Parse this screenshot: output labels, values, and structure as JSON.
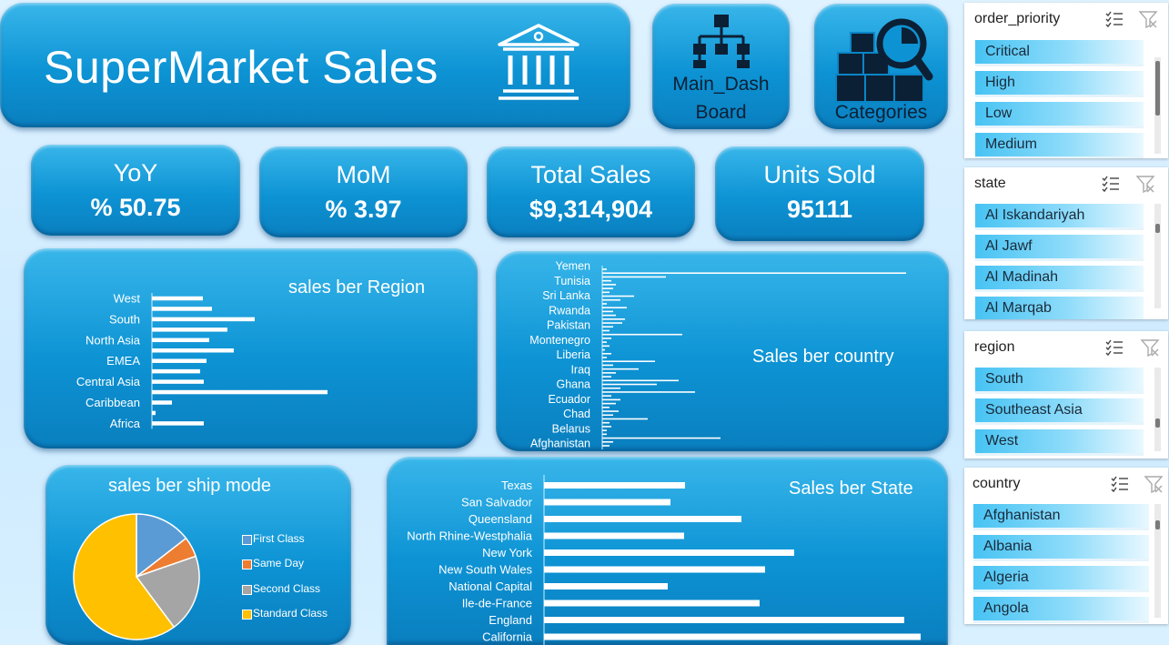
{
  "header": {
    "title": "SuperMarket Sales",
    "icon": "bank-building-icon"
  },
  "nav": {
    "main": {
      "label_line1": "Main_Dash",
      "label_line2": "Board",
      "icon": "org-chart-icon"
    },
    "categories": {
      "label": "Categories",
      "icon": "boxes-magnifier-icon"
    }
  },
  "kpis": {
    "yoy": {
      "label": "YoY",
      "value": "% 50.75"
    },
    "mom": {
      "label": "MoM",
      "value": "% 3.97"
    },
    "total_sales": {
      "label": "Total Sales",
      "value": "$9,314,904"
    },
    "units_sold": {
      "label": "Units Sold",
      "value": "95111"
    }
  },
  "colors": {
    "panel": "#0d93d4",
    "panel_light": "#38b6ea",
    "bar": "#ffffff",
    "slicer_item": "#47c3f3",
    "page_bg": "#dff2ff"
  },
  "charts": {
    "region": {
      "title": "sales ber Region"
    },
    "country": {
      "title": "Sales ber country"
    },
    "ship_mode": {
      "title": "sales ber ship mode"
    },
    "state": {
      "title": "Sales ber State"
    }
  },
  "chart_data": [
    {
      "type": "bar",
      "orientation": "horizontal",
      "title": "sales ber Region",
      "categories": [
        "West",
        "",
        "South",
        "",
        "North Asia",
        "",
        "EMEA",
        "",
        "Central Asia",
        "",
        "Caribbean",
        "",
        "Africa"
      ],
      "values": [
        56,
        66,
        113,
        83,
        63,
        90,
        60,
        53,
        57,
        193,
        22,
        4,
        57
      ]
    },
    {
      "type": "bar",
      "orientation": "horizontal",
      "title": "Sales ber country",
      "tick_labels": [
        "Yemen",
        "Tunisia",
        "Sri Lanka",
        "Rwanda",
        "Pakistan",
        "Montenegro",
        "Liberia",
        "Iraq",
        "Ghana",
        "Ecuador",
        "Chad",
        "Belarus",
        "Afghanistan"
      ],
      "values": [
        5,
        334,
        70,
        10,
        15,
        12,
        8,
        35,
        20,
        5,
        27,
        12,
        15,
        25,
        22,
        12,
        8,
        88,
        10,
        5,
        8,
        3,
        10,
        5,
        58,
        12,
        40,
        15,
        10,
        84,
        60,
        20,
        102,
        10,
        20,
        15,
        8,
        18,
        12,
        50,
        8,
        10,
        5,
        5,
        130,
        12,
        8
      ]
    },
    {
      "type": "pie",
      "title": "sales ber ship mode",
      "series": [
        {
          "name": "First Class",
          "value": 14.5,
          "color": "#5b9bd5"
        },
        {
          "name": "Same Day",
          "value": 5.2,
          "color": "#ed7d31"
        },
        {
          "name": "Second Class",
          "value": 20.1,
          "color": "#a5a5a5"
        },
        {
          "name": "Standard Class",
          "value": 60.2,
          "color": "#ffc000"
        }
      ]
    },
    {
      "type": "bar",
      "orientation": "horizontal",
      "title": "Sales ber State",
      "categories": [
        "Texas",
        "San Salvador",
        "Queensland",
        "North Rhine-Westphalia",
        "New York",
        "New South Wales",
        "National Capital",
        "Ile-de-France",
        "England",
        "California"
      ],
      "values": [
        155,
        139,
        217,
        154,
        275,
        243,
        136,
        237,
        396,
        414
      ]
    }
  ],
  "slicers": [
    {
      "name": "order_priority",
      "items": [
        "Critical",
        "High",
        "Low",
        "Medium"
      ]
    },
    {
      "name": "state",
      "items": [
        "Al Iskandariyah",
        "Al Jawf",
        "Al Madinah",
        "Al Marqab"
      ]
    },
    {
      "name": "region",
      "items": [
        "South",
        "Southeast Asia",
        "West"
      ]
    },
    {
      "name": "country",
      "items": [
        "Afghanistan",
        "Albania",
        "Algeria",
        "Angola"
      ]
    }
  ]
}
